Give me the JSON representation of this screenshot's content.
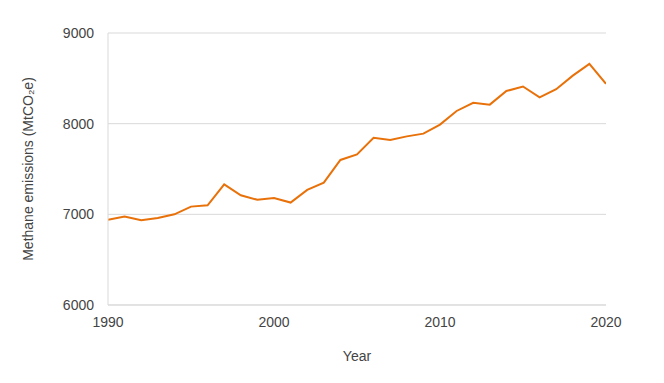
{
  "chart_data": {
    "type": "line",
    "x_label": "Year",
    "y_label": "Methane emissions (MtCO₂e)",
    "x": [
      1990,
      1991,
      1992,
      1993,
      1994,
      1995,
      1996,
      1997,
      1998,
      1999,
      2000,
      2001,
      2002,
      2003,
      2004,
      2005,
      2006,
      2007,
      2008,
      2009,
      2010,
      2011,
      2012,
      2013,
      2014,
      2015,
      2016,
      2017,
      2018,
      2019,
      2020
    ],
    "values": [
      6940,
      6975,
      6935,
      6960,
      7000,
      7085,
      7100,
      7330,
      7210,
      7160,
      7180,
      7130,
      7270,
      7350,
      7600,
      7660,
      7845,
      7820,
      7860,
      7890,
      7990,
      8140,
      8230,
      8210,
      8360,
      8410,
      8290,
      8380,
      8530,
      8660,
      8440
    ],
    "color": "#e8710a",
    "xlim": [
      1990,
      2020
    ],
    "xticks": [
      1990,
      2000,
      2010,
      2020
    ],
    "ylim": [
      6000,
      9000
    ],
    "yticks": [
      6000,
      7000,
      8000,
      9000
    ],
    "grid": true
  }
}
